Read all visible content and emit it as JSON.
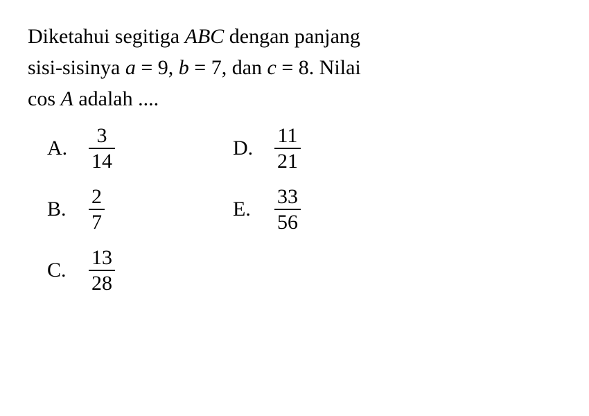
{
  "question": {
    "line1_pre": "Diketahui segitiga ",
    "line1_abc": "ABC",
    "line1_post": " dengan panjang",
    "line2_pre": "sisi-sisinya ",
    "line2_a": "a",
    "line2_eq1": " = 9, ",
    "line2_b": "b",
    "line2_eq2": " = 7, dan ",
    "line2_c": "c",
    "line2_eq3": " = 8. Nilai",
    "line3_pre": "cos ",
    "line3_A": "A",
    "line3_post": " adalah ...."
  },
  "options": {
    "A": {
      "label": "A.",
      "num": "3",
      "den": "14"
    },
    "B": {
      "label": "B.",
      "num": "2",
      "den": "7"
    },
    "C": {
      "label": "C.",
      "num": "13",
      "den": "28"
    },
    "D": {
      "label": "D.",
      "num": "11",
      "den": "21"
    },
    "E": {
      "label": "E.",
      "num": "33",
      "den": "56"
    }
  },
  "style": {
    "font_size_pt": 30,
    "text_color": "#000000",
    "background_color": "#ffffff",
    "fraction_rule_color": "#000000"
  }
}
